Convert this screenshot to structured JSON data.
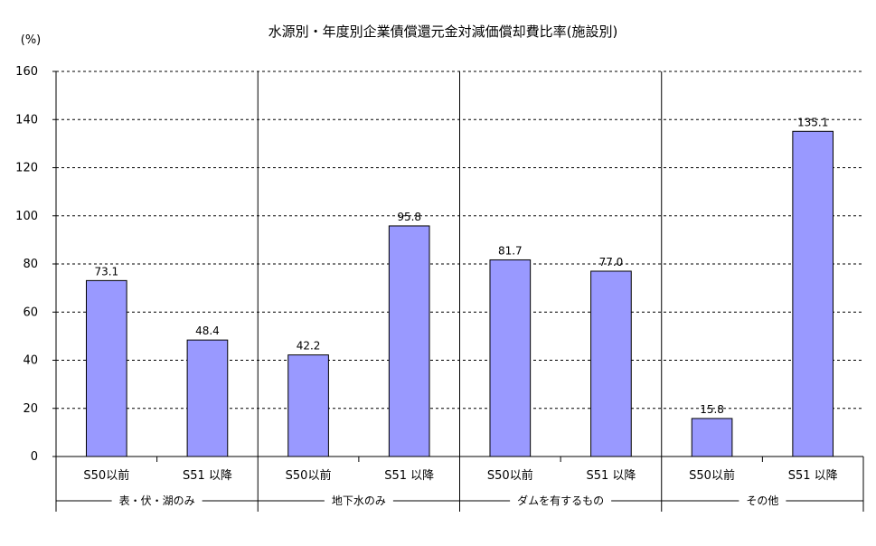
{
  "chart_data": {
    "type": "bar",
    "title": "水源別・年度別企業債償還元金対減価償却費比率(施設別)",
    "ylabel": "(%)",
    "xlabel": "",
    "ylim": [
      0,
      160
    ],
    "yticks": [
      0,
      20,
      40,
      60,
      80,
      100,
      120,
      140,
      160
    ],
    "grid": true,
    "legend": "none",
    "bar_color": "#9999ff",
    "groups": [
      {
        "name": "表・伏・湖のみ",
        "categories": [
          "S50以前",
          "S51 以降"
        ],
        "values": [
          73.1,
          48.4
        ],
        "labels": [
          "73.1",
          "48.4"
        ]
      },
      {
        "name": "地下水のみ",
        "categories": [
          "S50以前",
          "S51 以降"
        ],
        "values": [
          42.2,
          95.8
        ],
        "labels": [
          "42.2",
          "95.8"
        ]
      },
      {
        "name": "ダムを有するもの",
        "categories": [
          "S50以前",
          "S51 以降"
        ],
        "values": [
          81.7,
          77.0
        ],
        "labels": [
          "81.7",
          "77.0"
        ]
      },
      {
        "name": "その他",
        "categories": [
          "S50以前",
          "S51 以降"
        ],
        "values": [
          15.8,
          135.1
        ],
        "labels": [
          "15.8",
          "135.1"
        ]
      }
    ]
  }
}
